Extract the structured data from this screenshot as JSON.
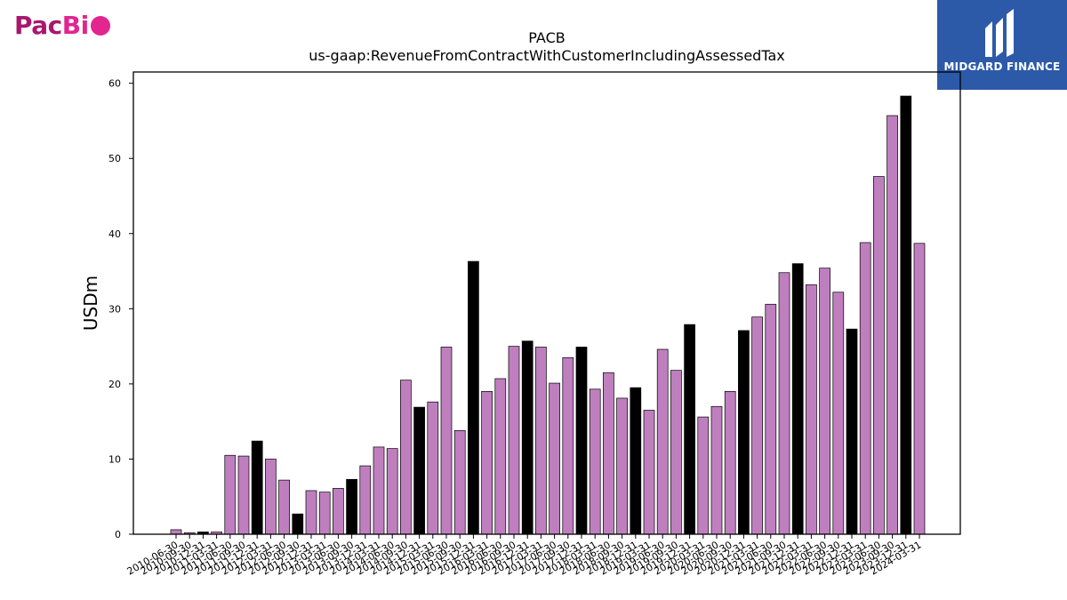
{
  "logos": {
    "left": {
      "part1": "Pac",
      "part2": "Bi",
      "color1": "#a8176e",
      "color2": "#e3258f"
    },
    "right": {
      "brand": "MIDGARD FINANCE",
      "background": "#2c5aa9"
    }
  },
  "chart_data": {
    "type": "bar",
    "title": "PACB",
    "subtitle": "us-gaap:RevenueFromContractWithCustomerIncludingAssessedTax",
    "ylabel": "USDm",
    "xlabel": "",
    "ylim": [
      0,
      61.5
    ],
    "yticks": [
      0,
      10,
      20,
      30,
      40,
      50,
      60
    ],
    "grid": false,
    "colors": {
      "quarter": "#bf7fbf",
      "annual": "#000000"
    },
    "categories": [
      "2010-06-30",
      "2010-09-30",
      "2010-12-31",
      "2011-03-31",
      "2011-06-30",
      "2011-09-30",
      "2011-12-31",
      "2012-03-31",
      "2012-06-30",
      "2012-09-30",
      "2012-12-31",
      "2013-03-31",
      "2013-06-30",
      "2013-09-30",
      "2013-12-31",
      "2014-03-31",
      "2014-06-30",
      "2014-09-30",
      "2014-12-31",
      "2015-03-31",
      "2015-06-30",
      "2015-09-30",
      "2015-12-31",
      "2016-03-31",
      "2016-06-30",
      "2016-09-30",
      "2016-12-31",
      "2017-03-31",
      "2017-06-30",
      "2017-09-30",
      "2017-12-31",
      "2018-03-31",
      "2018-06-30",
      "2018-09-30",
      "2018-12-31",
      "2019-03-31",
      "2019-06-30",
      "2019-09-30",
      "2019-12-31",
      "2020-03-31",
      "2020-06-30",
      "2020-09-30",
      "2020-12-31",
      "2021-03-31",
      "2021-06-30",
      "2021-09-30",
      "2021-12-31",
      "2022-03-31",
      "2022-06-30",
      "2022-09-30",
      "2022-12-31",
      "2023-03-31",
      "2023-06-30",
      "2023-09-30",
      "2023-12-31",
      "2024-03-31"
    ],
    "values": [
      0.6,
      0.2,
      0.3,
      0.3,
      10.5,
      10.4,
      12.4,
      10.0,
      7.2,
      2.7,
      5.8,
      5.6,
      6.1,
      7.3,
      9.1,
      11.6,
      11.4,
      20.5,
      16.9,
      17.6,
      24.9,
      13.8,
      36.3,
      19.0,
      20.7,
      25.0,
      25.7,
      24.9,
      20.1,
      23.5,
      24.9,
      19.3,
      21.5,
      18.1,
      19.5,
      16.5,
      24.6,
      21.8,
      27.9,
      15.6,
      17.0,
      19.0,
      27.1,
      28.9,
      30.6,
      34.8,
      36.0,
      33.2,
      35.4,
      32.2,
      27.3,
      38.8,
      47.6,
      55.7,
      58.3,
      38.7
    ],
    "annual": [
      false,
      false,
      true,
      false,
      false,
      false,
      true,
      false,
      false,
      true,
      false,
      false,
      false,
      true,
      false,
      false,
      false,
      false,
      true,
      false,
      false,
      false,
      true,
      false,
      false,
      false,
      true,
      false,
      false,
      false,
      true,
      false,
      false,
      false,
      true,
      false,
      false,
      false,
      true,
      false,
      false,
      false,
      true,
      false,
      false,
      false,
      true,
      false,
      false,
      false,
      true,
      false,
      false,
      false,
      true,
      false
    ]
  }
}
